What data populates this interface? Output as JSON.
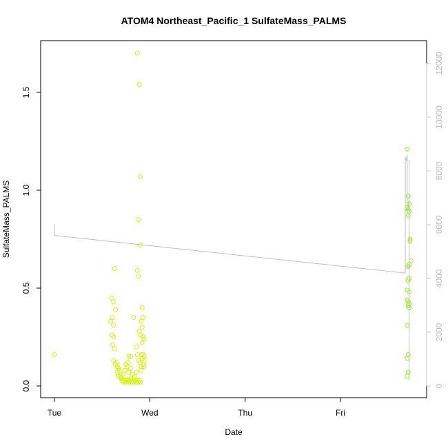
{
  "chart_data": {
    "type": "scatter",
    "title": "ATOM4 Northeast_Pacific_1 SulfateMass_PALMS",
    "xlabel": "Date",
    "ylabel": "SulfateMass_PALMS",
    "x_ticks": [
      "Tue",
      "Wed",
      "Thu",
      "Fri"
    ],
    "xlim_days": [
      0.0,
      4.0
    ],
    "ylim": [
      0.0,
      1.6
    ],
    "y_ticks": [
      "0.0",
      "0.5",
      "1.0",
      "1.5"
    ],
    "y2_ticks": [
      "0",
      "2000",
      "4000",
      "6000",
      "8000",
      "10000",
      "12000"
    ],
    "y2lim": [
      0,
      12000
    ],
    "colors": {
      "points_left": "#d4f50a",
      "points_right": "#99ee22",
      "altitude_line": "#bfbfbf",
      "right_axis": "#c8c8c8"
    },
    "series": [
      {
        "kind": "points",
        "points": [
          [
            0.0,
            0.16
          ],
          [
            0.63,
            0.6
          ],
          [
            0.6,
            0.45
          ],
          [
            0.62,
            0.43
          ],
          [
            0.59,
            0.33
          ],
          [
            0.61,
            0.35
          ],
          [
            0.62,
            0.31
          ],
          [
            0.64,
            0.39
          ],
          [
            0.6,
            0.26
          ],
          [
            0.62,
            0.25
          ],
          [
            0.61,
            0.21
          ],
          [
            0.63,
            0.19
          ],
          [
            0.65,
            0.12
          ],
          [
            0.66,
            0.1
          ],
          [
            0.67,
            0.09
          ],
          [
            0.68,
            0.08
          ],
          [
            0.62,
            0.13
          ],
          [
            0.64,
            0.11
          ],
          [
            0.69,
            0.05
          ],
          [
            0.7,
            0.04
          ],
          [
            0.71,
            0.03
          ],
          [
            0.72,
            0.02
          ],
          [
            0.73,
            0.03
          ],
          [
            0.74,
            0.02
          ],
          [
            0.75,
            0.03
          ],
          [
            0.76,
            0.02
          ],
          [
            0.77,
            0.03
          ],
          [
            0.78,
            0.02
          ],
          [
            0.79,
            0.03
          ],
          [
            0.8,
            0.04
          ],
          [
            0.81,
            0.02
          ],
          [
            0.82,
            0.03
          ],
          [
            0.83,
            0.02
          ],
          [
            0.84,
            0.03
          ],
          [
            0.85,
            0.03
          ],
          [
            0.86,
            0.02
          ],
          [
            0.87,
            0.03
          ],
          [
            0.88,
            0.02
          ],
          [
            0.89,
            0.03
          ],
          [
            0.9,
            0.02
          ],
          [
            0.72,
            0.06
          ],
          [
            0.74,
            0.08
          ],
          [
            0.76,
            0.1
          ],
          [
            0.78,
            0.07
          ],
          [
            0.8,
            0.09
          ],
          [
            0.82,
            0.06
          ],
          [
            0.84,
            0.05
          ],
          [
            0.86,
            0.07
          ],
          [
            0.78,
            0.15
          ],
          [
            0.8,
            0.15
          ],
          [
            0.83,
            0.35
          ],
          [
            0.86,
            0.2
          ],
          [
            0.87,
            0.16
          ],
          [
            0.88,
            0.13
          ],
          [
            0.9,
            0.12
          ],
          [
            0.91,
            0.1
          ],
          [
            0.87,
            1.7
          ],
          [
            0.89,
            1.54
          ],
          [
            0.88,
            0.85
          ],
          [
            0.9,
            1.07
          ],
          [
            0.9,
            0.72
          ],
          [
            0.87,
            0.59
          ],
          [
            0.88,
            0.56
          ],
          [
            0.89,
            0.28
          ],
          [
            0.92,
            0.4
          ],
          [
            0.91,
            0.33
          ],
          [
            0.93,
            0.35
          ],
          [
            0.92,
            0.3
          ],
          [
            0.9,
            0.26
          ],
          [
            0.93,
            0.25
          ],
          [
            0.94,
            0.24
          ],
          [
            0.92,
            0.22
          ],
          [
            0.91,
            0.16
          ],
          [
            0.93,
            0.16
          ],
          [
            0.94,
            0.15
          ],
          [
            0.92,
            0.14
          ],
          [
            0.94,
            0.13
          ],
          [
            0.93,
            0.11
          ],
          [
            0.94,
            0.1
          ],
          [
            0.91,
            0.08
          ],
          [
            0.75,
            0.11
          ],
          [
            0.77,
            0.12
          ],
          [
            0.7,
            0.04
          ],
          [
            0.69,
            0.06
          ],
          [
            0.66,
            0.07
          ],
          [
            0.67,
            0.05
          ]
        ]
      },
      {
        "kind": "points",
        "points": [
          [
            3.7,
            1.21
          ],
          [
            3.71,
            0.97
          ],
          [
            3.72,
            0.93
          ],
          [
            3.7,
            0.91
          ],
          [
            3.71,
            0.9
          ],
          [
            3.72,
            0.89
          ],
          [
            3.71,
            0.87
          ],
          [
            3.73,
            0.75
          ],
          [
            3.73,
            0.74
          ],
          [
            3.74,
            0.64
          ],
          [
            3.71,
            0.61
          ],
          [
            3.72,
            0.55
          ],
          [
            3.71,
            0.54
          ],
          [
            3.7,
            0.49
          ],
          [
            3.72,
            0.48
          ],
          [
            3.7,
            0.44
          ],
          [
            3.71,
            0.43
          ],
          [
            3.72,
            0.42
          ],
          [
            3.71,
            0.41
          ],
          [
            3.72,
            0.4
          ],
          [
            3.7,
            0.31
          ],
          [
            3.71,
            0.16
          ],
          [
            3.7,
            0.14
          ],
          [
            3.71,
            0.07
          ],
          [
            3.7,
            0.05
          ],
          [
            3.72,
            0.62
          ]
        ]
      },
      {
        "kind": "line",
        "axis": "right",
        "points": [
          [
            0.0,
            6000
          ],
          [
            0.0,
            5600
          ],
          [
            0.0,
            5600
          ],
          [
            3.68,
            4200
          ],
          [
            3.68,
            8500
          ],
          [
            3.69,
            8400
          ],
          [
            3.7,
            8600
          ],
          [
            3.7,
            6500
          ],
          [
            3.71,
            6600
          ],
          [
            3.72,
            7000
          ],
          [
            3.72,
            6200
          ],
          [
            3.72,
            4800
          ],
          [
            3.72,
            4700
          ],
          [
            3.72,
            8400
          ],
          [
            3.72,
            200
          ]
        ]
      }
    ]
  }
}
